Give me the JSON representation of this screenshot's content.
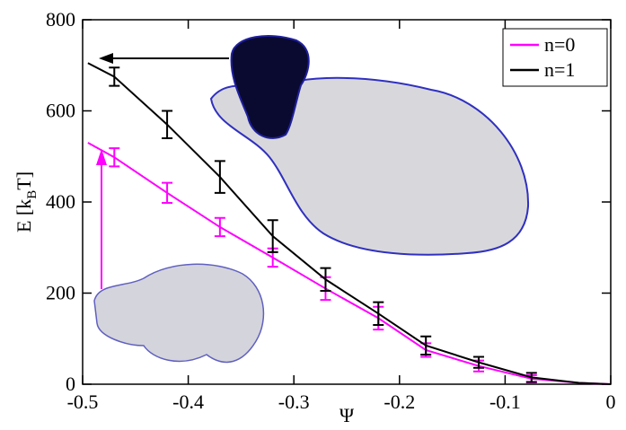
{
  "chart_data": {
    "type": "line",
    "x": [
      -0.495,
      -0.47,
      -0.42,
      -0.37,
      -0.32,
      -0.27,
      -0.22,
      -0.175,
      -0.125,
      -0.075,
      -0.03,
      0
    ],
    "series": [
      {
        "name": "n=0",
        "color": "#ff00ff",
        "values": [
          530,
          498,
          420,
          345,
          278,
          210,
          145,
          75,
          40,
          12,
          3,
          0
        ],
        "errors": [
          null,
          20,
          22,
          20,
          20,
          25,
          25,
          15,
          12,
          8,
          null,
          null
        ]
      },
      {
        "name": "n=1",
        "color": "#000000",
        "values": [
          705,
          675,
          570,
          455,
          325,
          230,
          155,
          85,
          48,
          15,
          3,
          0
        ],
        "errors": [
          null,
          20,
          30,
          35,
          35,
          25,
          25,
          20,
          12,
          10,
          null,
          null
        ]
      }
    ],
    "xlabel": "Ψ",
    "ylabel": [
      "E [k",
      "B",
      "T]"
    ],
    "xlim": [
      -0.5,
      0
    ],
    "ylim": [
      0,
      800
    ],
    "xticks": [
      -0.5,
      -0.4,
      -0.3,
      -0.2,
      -0.1,
      0
    ],
    "yticks": [
      0,
      200,
      400,
      600,
      800
    ],
    "legend": "upper right"
  }
}
